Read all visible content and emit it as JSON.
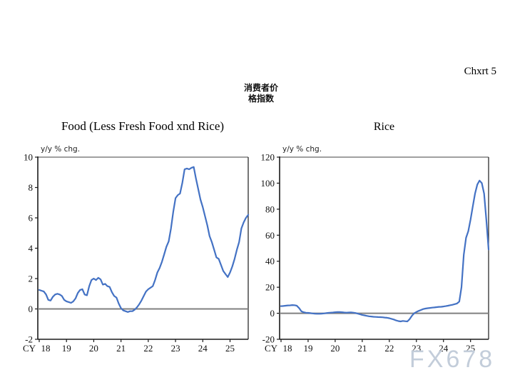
{
  "page": {
    "chart_number": "Chxrt 5",
    "header": {
      "line1": "消费者价",
      "line2": "格指数"
    },
    "watermark": "FX678"
  },
  "chart_data": [
    {
      "type": "line",
      "title": "Food (Less Fresh Food xnd Rice)",
      "ylabel": "y/y % chg.",
      "x_axis_prefix": "CY",
      "x_start_year": 2018,
      "x_end_year": 2025.667,
      "points_per_year": 12,
      "xticks": [
        18,
        19,
        20,
        21,
        22,
        23,
        24,
        25
      ],
      "ylim": [
        -2,
        10
      ],
      "yticks": [
        10,
        8,
        6,
        4,
        2,
        0,
        -2
      ],
      "zero_line": true,
      "grid": false,
      "legend": "none",
      "line_color": "#4472C4",
      "values": [
        1.25,
        1.2,
        1.15,
        0.95,
        0.6,
        0.55,
        0.8,
        0.95,
        1.0,
        0.95,
        0.85,
        0.6,
        0.5,
        0.45,
        0.4,
        0.5,
        0.7,
        1.05,
        1.25,
        1.3,
        0.95,
        0.9,
        1.5,
        1.9,
        2.0,
        1.9,
        2.05,
        1.95,
        1.6,
        1.65,
        1.5,
        1.45,
        1.1,
        0.85,
        0.75,
        0.35,
        0.05,
        -0.1,
        -0.15,
        -0.2,
        -0.15,
        -0.15,
        -0.05,
        0.1,
        0.3,
        0.55,
        0.85,
        1.15,
        1.3,
        1.4,
        1.5,
        1.9,
        2.4,
        2.7,
        3.1,
        3.6,
        4.1,
        4.45,
        5.3,
        6.4,
        7.3,
        7.5,
        7.6,
        8.3,
        9.2,
        9.25,
        9.2,
        9.3,
        9.35,
        8.6,
        7.9,
        7.2,
        6.7,
        6.1,
        5.5,
        4.8,
        4.4,
        3.9,
        3.4,
        3.3,
        2.9,
        2.5,
        2.3,
        2.1,
        2.4,
        2.8,
        3.3,
        3.9,
        4.4,
        5.3,
        5.7,
        6.0,
        6.2
      ]
    },
    {
      "type": "line",
      "title": "Rice",
      "ylabel": "y/y % chg.",
      "x_axis_prefix": "CY",
      "x_start_year": 2018,
      "x_end_year": 2025.667,
      "points_per_year": 12,
      "xticks": [
        18,
        19,
        20,
        21,
        22,
        23,
        24,
        25
      ],
      "ylim": [
        -20,
        120
      ],
      "yticks": [
        120,
        100,
        80,
        60,
        40,
        20,
        0,
        -20
      ],
      "zero_line": true,
      "grid": false,
      "legend": "none",
      "line_color": "#4472C4",
      "values": [
        5.5,
        5.6,
        5.8,
        6.0,
        6.1,
        6.3,
        6.2,
        5.8,
        4.0,
        1.5,
        0.8,
        0.4,
        0.3,
        0.1,
        -0.1,
        -0.3,
        -0.4,
        -0.4,
        -0.3,
        -0.1,
        0.1,
        0.3,
        0.5,
        0.6,
        0.8,
        1.0,
        0.9,
        0.8,
        0.6,
        0.5,
        0.6,
        0.7,
        0.5,
        0.2,
        -0.3,
        -0.8,
        -1.3,
        -1.6,
        -2.0,
        -2.3,
        -2.5,
        -2.7,
        -2.8,
        -2.9,
        -3.0,
        -3.1,
        -3.3,
        -3.5,
        -3.8,
        -4.3,
        -4.8,
        -5.5,
        -6.0,
        -6.3,
        -5.9,
        -6.1,
        -6.3,
        -4.5,
        -2.0,
        0.0,
        1.0,
        1.8,
        2.5,
        3.2,
        3.6,
        3.9,
        4.1,
        4.3,
        4.5,
        4.7,
        4.9,
        5.0,
        5.2,
        5.5,
        5.8,
        6.2,
        6.5,
        7.0,
        7.5,
        9.0,
        20.0,
        45.0,
        58.0,
        63.0,
        72.0,
        82.0,
        92.0,
        99.0,
        102.0,
        100.0,
        92.0,
        72.0,
        49.0
      ]
    }
  ]
}
